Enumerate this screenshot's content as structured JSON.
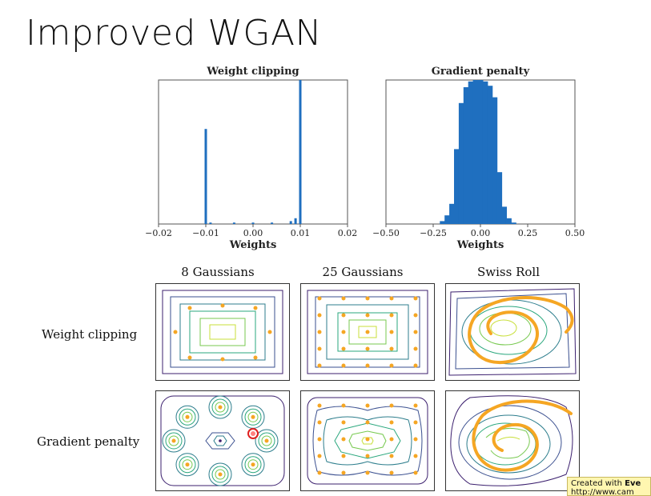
{
  "slide": {
    "title": "Improved WGAN"
  },
  "chart_data": [
    {
      "type": "bar",
      "title": "Weight clipping",
      "xlabel": "Weights",
      "xlim": [
        -0.02,
        0.02
      ],
      "xticks": [
        "−0.02",
        "−0.01",
        "0.00",
        "0.01",
        "0.02"
      ],
      "grid": false,
      "series": [
        {
          "values": [
            {
              "x": -0.01,
              "y": 0.66
            },
            {
              "x": -0.009,
              "y": 0.01
            },
            {
              "x": -0.004,
              "y": 0.01
            },
            {
              "x": 0.0,
              "y": 0.01
            },
            {
              "x": 0.004,
              "y": 0.01
            },
            {
              "x": 0.008,
              "y": 0.02
            },
            {
              "x": 0.009,
              "y": 0.04
            },
            {
              "x": 0.01,
              "y": 1.0
            }
          ]
        }
      ]
    },
    {
      "type": "bar",
      "title": "Gradient penalty",
      "xlabel": "Weights",
      "xlim": [
        -0.5,
        0.5
      ],
      "xticks": [
        "−0.50",
        "−0.25",
        "0.00",
        "0.25",
        "0.50"
      ],
      "grid": false,
      "series": [
        {
          "values": [
            {
              "x": -0.2,
              "y": 0.02
            },
            {
              "x": -0.175,
              "y": 0.06
            },
            {
              "x": -0.15,
              "y": 0.14
            },
            {
              "x": -0.125,
              "y": 0.52
            },
            {
              "x": -0.1,
              "y": 0.84
            },
            {
              "x": -0.075,
              "y": 0.95
            },
            {
              "x": -0.05,
              "y": 0.99
            },
            {
              "x": -0.025,
              "y": 1.0
            },
            {
              "x": 0.0,
              "y": 1.0
            },
            {
              "x": 0.025,
              "y": 0.99
            },
            {
              "x": 0.05,
              "y": 0.96
            },
            {
              "x": 0.075,
              "y": 0.88
            },
            {
              "x": 0.1,
              "y": 0.36
            },
            {
              "x": 0.125,
              "y": 0.12
            },
            {
              "x": 0.15,
              "y": 0.04
            },
            {
              "x": 0.175,
              "y": 0.01
            }
          ]
        }
      ]
    }
  ],
  "grid_figure": {
    "columns": [
      "8 Gaussians",
      "25 Gaussians",
      "Swiss Roll"
    ],
    "rows": [
      "Weight clipping",
      "Gradient penalty"
    ]
  },
  "colors": {
    "bar": "#1f6fbf",
    "points": "#f5a623",
    "contours": [
      "#3b1f6e",
      "#3a4f8f",
      "#2c7d8c",
      "#2aa77d",
      "#77c94f",
      "#c8df3a"
    ],
    "highlight": "#e02020"
  },
  "watermark": {
    "line1_prefix": "Created with ",
    "line1_brand": "Eve",
    "line2": "http://www.cam"
  }
}
